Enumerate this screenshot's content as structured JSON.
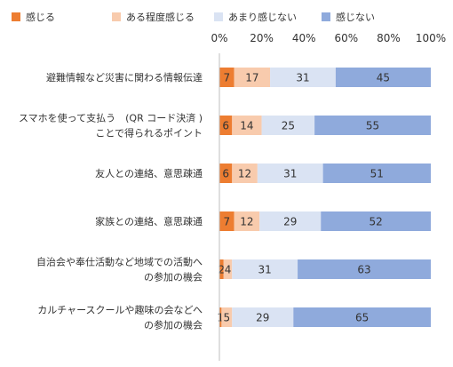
{
  "chart_data": {
    "type": "bar",
    "orientation": "horizontal",
    "stacked": true,
    "title": "",
    "xlabel": "",
    "ylabel": "",
    "xlim": [
      0,
      100
    ],
    "x_ticks": [
      "0%",
      "20%",
      "40%",
      "60%",
      "80%",
      "100%"
    ],
    "x_axis_position": "top",
    "grid": false,
    "legend_position": "top",
    "categories": [
      [
        "避難情報など災害に関わる情報伝達"
      ],
      [
        "スマホを使って支払う　(QR コード決済 )",
        "ことで得られるポイント"
      ],
      [
        "友人との連絡、意思疎通"
      ],
      [
        "家族との連絡、意思疎通"
      ],
      [
        "自治会や奉仕活動など地域での活動へ",
        "の参加の機会"
      ],
      [
        "カルチャースクールや趣味の会などへ",
        "の参加の機会"
      ]
    ],
    "series": [
      {
        "name": "感じる",
        "color": "#ed7d31",
        "values": [
          7,
          6,
          6,
          7,
          2,
          1
        ]
      },
      {
        "name": "ある程度感じる",
        "color": "#f8cbad",
        "values": [
          17,
          14,
          12,
          12,
          4,
          5
        ]
      },
      {
        "name": "あまり感じない",
        "color": "#dae3f3",
        "values": [
          31,
          25,
          31,
          29,
          31,
          29
        ]
      },
      {
        "name": "感じない",
        "color": "#8faadc",
        "values": [
          45,
          55,
          51,
          52,
          63,
          65
        ]
      }
    ]
  }
}
